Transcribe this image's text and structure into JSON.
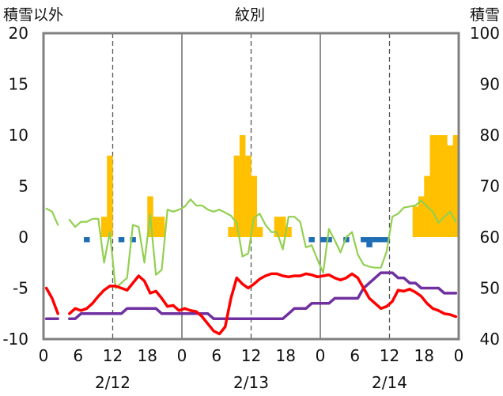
{
  "chart_data": {
    "type": "bar+line",
    "title": "紋別",
    "left_axis_label": "積雪以外",
    "right_axis_label": "積雪",
    "left_axis": {
      "min": -10,
      "max": 20,
      "ticks": [
        20,
        15,
        10,
        5,
        0,
        -5,
        -10
      ]
    },
    "right_axis": {
      "min": 40,
      "max": 100,
      "ticks": [
        100,
        90,
        80,
        70,
        60,
        50,
        40
      ]
    },
    "x_hour_ticks": [
      "0",
      "6",
      "12",
      "18",
      "0",
      "6",
      "12",
      "18",
      "0",
      "6",
      "12",
      "18",
      "0"
    ],
    "x_date_labels": [
      "2/12",
      "2/13",
      "2/14"
    ],
    "grid": "dashed vertical lines at 12h, solid day separators",
    "colors": {
      "snowfall": "#ffc000",
      "precipitation": "#1f6eb5",
      "temperature": "#ff0000",
      "snow_depth": "#7030a0",
      "wind": "#92d050",
      "frame": "#808080"
    },
    "series": [
      {
        "key": "snowfall",
        "axis": "left",
        "kind": "bar",
        "values": [
          0,
          0,
          0,
          0,
          0,
          0,
          0,
          0,
          0,
          0,
          2,
          8,
          0,
          0,
          0,
          0,
          0,
          0,
          4,
          2,
          2,
          0,
          0,
          0,
          0,
          0,
          0,
          0,
          0,
          0,
          0,
          0,
          1,
          8,
          10,
          8,
          6,
          1,
          0,
          0,
          2,
          2,
          1,
          0,
          0,
          0,
          0,
          0,
          0,
          0,
          0,
          0,
          0,
          0,
          0,
          0,
          0,
          0,
          0,
          0,
          0,
          0,
          0,
          0,
          3,
          4,
          6,
          10,
          10,
          10,
          9,
          10
        ]
      },
      {
        "key": "precipitation",
        "axis": "left",
        "kind": "bar",
        "values": [
          0,
          0,
          0,
          0,
          0,
          0,
          0,
          -0.5,
          0,
          0,
          0,
          0,
          0,
          -0.5,
          0,
          -0.5,
          0,
          0,
          0,
          0,
          0,
          0,
          0,
          0,
          0,
          0,
          0,
          0,
          0,
          0,
          0,
          0,
          0,
          0,
          0,
          0,
          0,
          0,
          0,
          0,
          0,
          0,
          0,
          0,
          0,
          0,
          -0.5,
          0,
          -0.5,
          -0.5,
          0,
          0,
          -0.5,
          0,
          0,
          -0.5,
          -1,
          -0.5,
          -0.5,
          -0.5,
          0,
          0,
          0,
          0,
          0,
          0,
          0,
          0,
          0,
          0,
          0,
          0
        ]
      },
      {
        "key": "temperature",
        "axis": "left",
        "kind": "line",
        "values": [
          -5,
          -6,
          -7.5,
          null,
          -7.5,
          -7,
          -7.2,
          -7,
          -6.5,
          -5.8,
          -5.2,
          -4.8,
          -4.8,
          -5,
          -5.2,
          -4.5,
          -3.8,
          -4.3,
          -5.5,
          -5.3,
          -6,
          -6.8,
          -6.7,
          -7.2,
          -7,
          -7.2,
          -7.3,
          -7.8,
          -8.5,
          -9.2,
          -9.5,
          -8.8,
          -6,
          -4,
          -4.6,
          -5,
          -4.6,
          -4.1,
          -3.8,
          -3.6,
          -3.6,
          -3.8,
          -3.9,
          -3.8,
          -3.8,
          -3.6,
          -3.7,
          -3.9,
          -3.8,
          -3.7,
          -4,
          -4.2,
          -4,
          -3.6,
          -4,
          -5,
          -6,
          -6.5,
          -7,
          -6.8,
          -6.3,
          -5.2,
          -5.3,
          -5.1,
          -5.4,
          -5.8,
          -6.5,
          -7,
          -7.2,
          -7.5,
          -7.6,
          -7.8
        ]
      },
      {
        "key": "snow_depth",
        "axis": "right",
        "kind": "line",
        "values": [
          44,
          44,
          44,
          null,
          44,
          44,
          45,
          45,
          45,
          45,
          45,
          45,
          45,
          45,
          46,
          46,
          46,
          46,
          46,
          46,
          45,
          45,
          45,
          45,
          45,
          45,
          45,
          45,
          45,
          44,
          44,
          44,
          44,
          44,
          44,
          44,
          44,
          44,
          44,
          44,
          44,
          44,
          45,
          46,
          46,
          46,
          47,
          47,
          47,
          47,
          48,
          48,
          48,
          48,
          48,
          50,
          51,
          52,
          53,
          53,
          53,
          52,
          52,
          51,
          51,
          50,
          50,
          50,
          50,
          49,
          49,
          49
        ]
      },
      {
        "key": "wind",
        "axis": "left",
        "kind": "line",
        "values": [
          2.8,
          2.5,
          1.2,
          null,
          1.7,
          1.0,
          1.5,
          1.5,
          1.8,
          1.8,
          -2.5,
          0.5,
          -5,
          -4.5,
          -4,
          1.2,
          1,
          -2.5,
          2.2,
          -3.7,
          -3.2,
          2.7,
          2.5,
          2.7,
          3.0,
          3.7,
          3.1,
          3.1,
          2.7,
          2.5,
          2.7,
          2.4,
          2.1,
          1.4,
          -1.9,
          -1.6,
          1.9,
          2.3,
          1.2,
          0.5,
          0.5,
          -1.2,
          2,
          2,
          1.5,
          -1,
          -0.8,
          -2.2,
          -3.5,
          0.8,
          -0.3,
          -1.5,
          0,
          0.5,
          -1.7,
          -2.7,
          -2.9,
          -3,
          -3,
          -1.4,
          2,
          2.3,
          2.9,
          3.0,
          3.1,
          3.6,
          3.0,
          2.5,
          1.4,
          2,
          2.5,
          1.5
        ]
      }
    ]
  }
}
